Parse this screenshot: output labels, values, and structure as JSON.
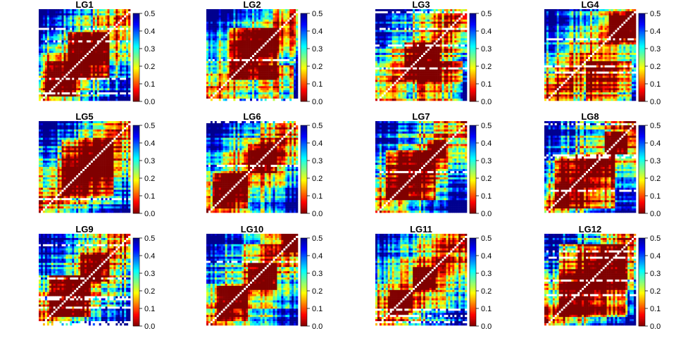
{
  "chart_data": {
    "type": "heatmap",
    "layout": {
      "rows": 3,
      "cols": 4
    },
    "colorbar": {
      "min": 0.0,
      "max": 0.5,
      "ticks": [
        "0.0",
        "0.1",
        "0.2",
        "0.3",
        "0.4",
        "0.5"
      ],
      "palette": [
        "#800000",
        "#ff0000",
        "#ff8000",
        "#ffff00",
        "#80ff80",
        "#00ffff",
        "#0080ff",
        "#0000ff",
        "#00008f"
      ]
    },
    "diagonal_color": "#ffffff",
    "panels": [
      {
        "title": "LG1",
        "pattern": "Red band along the diagonal with a block of low values in the lower-left corner; higher values off-diagonal"
      },
      {
        "title": "LG2",
        "pattern": "Large low-value block in the upper-left and centre region; gaps of white cells"
      },
      {
        "title": "LG3",
        "pattern": "Low-value block in the middle and lower-left region"
      },
      {
        "title": "LG4",
        "pattern": "Low values mostly in the lower-left block; high values in the upper-left and right"
      },
      {
        "title": "LG5",
        "pattern": "Broad low-value central block with mixed values around it"
      },
      {
        "title": "LG6",
        "pattern": "Low-value diagonal band with a low block in the lower-left corner"
      },
      {
        "title": "LG7",
        "pattern": "Low-value region in the left and centre; high values along the bottom-right"
      },
      {
        "title": "LG8",
        "pattern": "Large low-value block in the centre-left region"
      },
      {
        "title": "LG9",
        "pattern": "Low-value diagonal band widening in the lower-left"
      },
      {
        "title": "LG10",
        "pattern": "Strong low-value diagonal with blocks of low values in the centre and upper-right"
      },
      {
        "title": "LG11",
        "pattern": "Narrow low-value diagonal with a low block near the lower-left"
      },
      {
        "title": "LG12",
        "pattern": "Large low-value central block filling most of the matrix"
      }
    ]
  }
}
